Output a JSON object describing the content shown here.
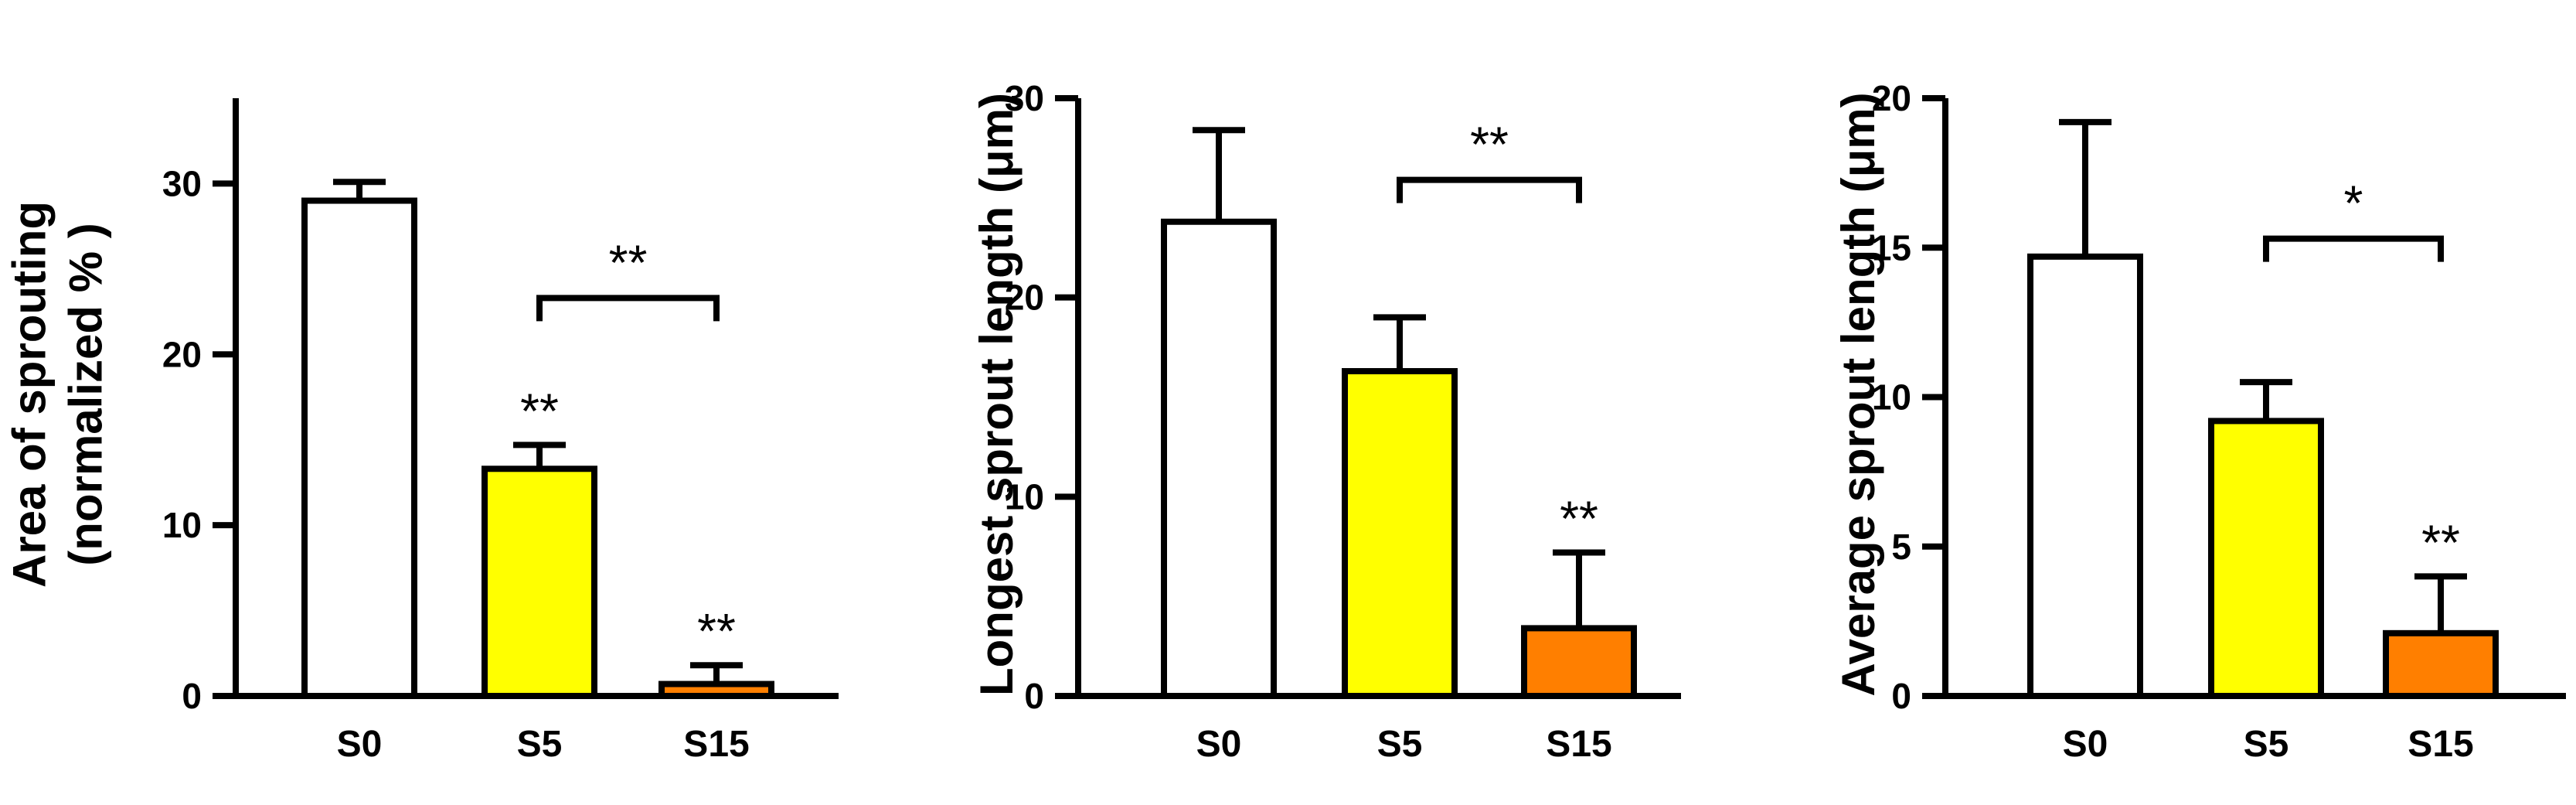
{
  "chart_data": [
    {
      "type": "bar",
      "ylabel_lines": [
        "Area of sprouting",
        "(normalized % )"
      ],
      "categories": [
        "S0",
        "S5",
        "S15"
      ],
      "values": [
        29.0,
        13.3,
        0.7
      ],
      "errors": [
        1.1,
        1.4,
        1.1
      ],
      "ylim": [
        0,
        35
      ],
      "yticks": [
        0,
        10,
        20,
        30
      ],
      "bar_colors": [
        "#ffffff",
        "#ffff00",
        "#ff7f00"
      ],
      "bar_annotations": [
        "",
        "**",
        "**"
      ],
      "bracket": {
        "from": "S5",
        "to": "S15",
        "level": 23.3,
        "label": "**"
      }
    },
    {
      "type": "bar",
      "ylabel_lines": [
        "Longest sprout length (μm)"
      ],
      "categories": [
        "S0",
        "S5",
        "S15"
      ],
      "values": [
        23.8,
        16.3,
        3.4
      ],
      "errors": [
        4.6,
        2.7,
        3.8
      ],
      "ylim": [
        0,
        30
      ],
      "yticks": [
        0,
        10,
        20,
        30
      ],
      "bar_colors": [
        "#ffffff",
        "#ffff00",
        "#ff7f00"
      ],
      "bar_annotations": [
        "",
        "",
        "**"
      ],
      "bracket": {
        "from": "S5",
        "to": "S15",
        "level": 25.9,
        "label": "**"
      }
    },
    {
      "type": "bar",
      "ylabel_lines": [
        "Average sprout length (μm)"
      ],
      "categories": [
        "S0",
        "S5",
        "S15"
      ],
      "values": [
        14.7,
        9.2,
        2.1
      ],
      "errors": [
        4.5,
        1.3,
        1.9
      ],
      "ylim": [
        0,
        20
      ],
      "yticks": [
        0,
        5,
        10,
        15,
        20
      ],
      "bar_colors": [
        "#ffffff",
        "#ffff00",
        "#ff7f00"
      ],
      "bar_annotations": [
        "",
        "",
        "**"
      ],
      "bracket": {
        "from": "S5",
        "to": "S15",
        "level": 15.3,
        "label": "*"
      }
    }
  ]
}
